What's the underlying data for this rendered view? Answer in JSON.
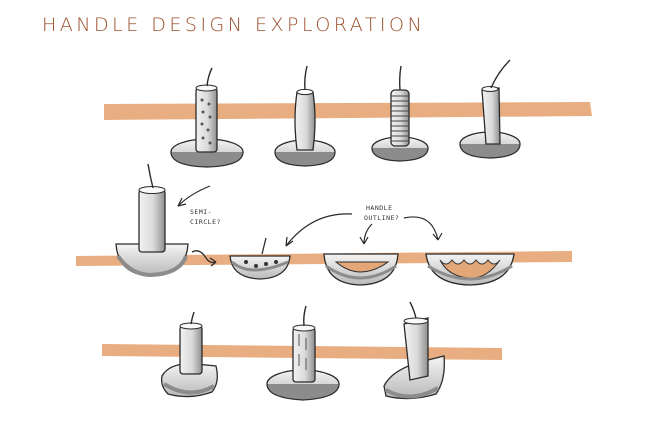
{
  "header": {
    "title": "HANDLE DESIGN EXPLORATION"
  },
  "annotations": {
    "semi_circle": [
      "SEMI-",
      "CIRCLE?"
    ],
    "handle_outline": [
      "HANDLE",
      "OUTLINE?"
    ]
  },
  "colors": {
    "title": "#9a4f2c",
    "marker_stripe": "#e6a472",
    "ink": "#2b2b2b",
    "shadow": "#8c8c8c",
    "cutout": "#e2a677"
  }
}
